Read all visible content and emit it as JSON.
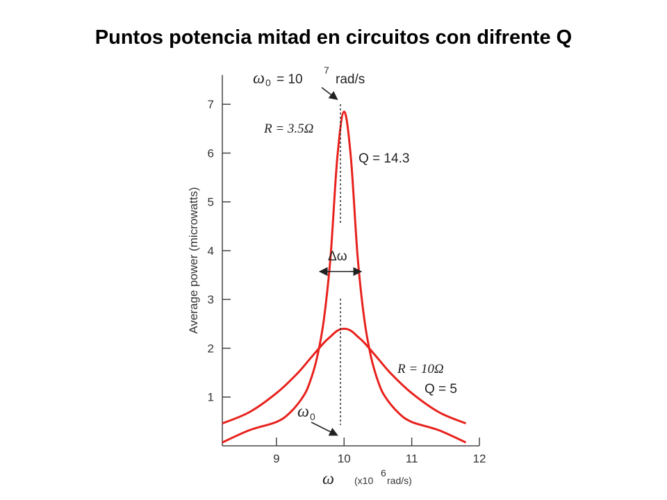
{
  "title": "Puntos potencia mitad en circuitos con difrente Q",
  "chart_data": {
    "type": "line",
    "ylabel": "Average power (microwatts)",
    "xlabel": "ω",
    "xunit_prefix": "(x10",
    "xunit_exp": "6",
    "xunit_suffix": "rad/s)",
    "xlim": [
      8.2,
      12
    ],
    "ylim": [
      0,
      7.6
    ],
    "xticks": [
      "9",
      "10",
      "11",
      "12"
    ],
    "xtick_values": [
      9,
      10,
      11,
      12
    ],
    "yticks": [
      "1",
      "2",
      "3",
      "4",
      "5",
      "6",
      "7"
    ],
    "ytick_values": [
      1,
      2,
      3,
      4,
      5,
      6,
      7
    ],
    "series_color": "#e8211c",
    "series": [
      {
        "peak": 6.85,
        "x": [
          8.2,
          8.6,
          9.0,
          9.2,
          9.4,
          9.5,
          9.6,
          9.7,
          9.8,
          9.9,
          10.0,
          10.1,
          10.2,
          10.3,
          10.4,
          10.5,
          10.6,
          10.8,
          11.0,
          11.4,
          11.8
        ],
        "y": [
          0.07,
          0.32,
          0.49,
          0.68,
          1.02,
          1.33,
          1.81,
          2.58,
          3.88,
          5.91,
          6.85,
          5.91,
          3.88,
          2.58,
          1.81,
          1.33,
          1.02,
          0.68,
          0.49,
          0.32,
          0.07
        ]
      },
      {
        "peak": 2.4,
        "x": [
          8.2,
          8.6,
          9.0,
          9.3,
          9.5,
          9.7,
          9.8,
          9.9,
          10.0,
          10.1,
          10.2,
          10.3,
          10.5,
          10.7,
          11.0,
          11.4,
          11.8
        ],
        "y": [
          0.46,
          0.69,
          1.08,
          1.47,
          1.79,
          2.11,
          2.24,
          2.36,
          2.4,
          2.36,
          2.24,
          2.11,
          1.79,
          1.47,
          1.08,
          0.69,
          0.46
        ]
      }
    ],
    "annotations": {
      "top_omega": "ω",
      "top_omega_sub": "0",
      "top_eq": "= 10",
      "top_exp": "7",
      "top_unit": "rad/s",
      "r1": "R = 3.5Ω",
      "q1": "Q = 14.3",
      "delta": "Δω",
      "r2": "R = 10Ω",
      "q2": "Q = 5",
      "bottom_omega": "ω",
      "bottom_omega_sub": "0"
    }
  }
}
